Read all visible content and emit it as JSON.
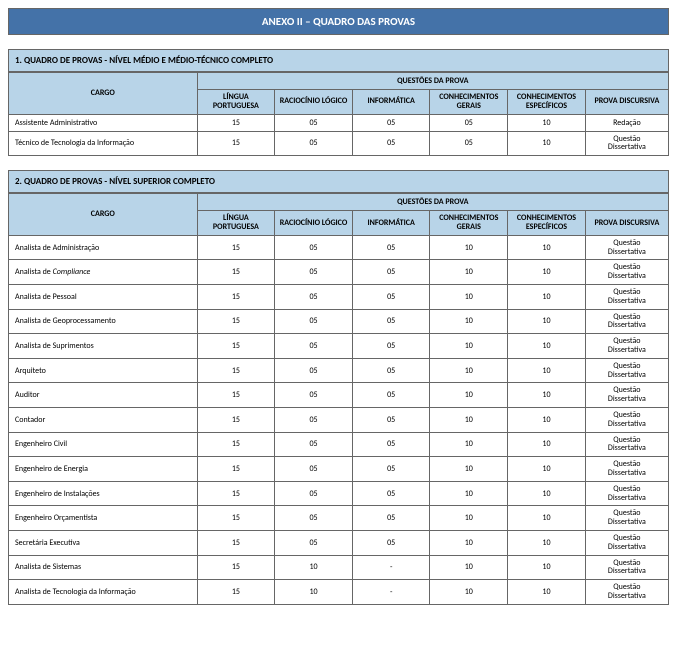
{
  "colors": {
    "title_bg": "#4472a8",
    "title_fg": "#ffffff",
    "section_bg": "#b8d4e8",
    "border": "#666666",
    "cell_bg": "#ffffff",
    "text": "#000000"
  },
  "title": "ANEXO II – QUADRO DAS PROVAS",
  "headers": {
    "cargo": "CARGO",
    "questoes": "QUESTÕES DA PROVA",
    "lingua": "LÍNGUA PORTUGUESA",
    "raciocinio": "RACIOCÍNIO LÓGICO",
    "informatica": "INFORMÁTICA",
    "gerais": "CONHECIMENTOS GERAIS",
    "especificos": "CONHECIMENTOS ESPECÍFICOS",
    "discursiva": "PROVA DISCURSIVA"
  },
  "sections": [
    {
      "title": "1. QUADRO DE PROVAS - NÍVEL MÉDIO E MÉDIO-TÉCNICO COMPLETO",
      "rows": [
        {
          "cargo": "Assistente Administrativo",
          "v": [
            "15",
            "05",
            "05",
            "05",
            "10",
            "Redação"
          ]
        },
        {
          "cargo": "Técnico de Tecnologia da Informação",
          "v": [
            "15",
            "05",
            "05",
            "05",
            "10",
            "Questão Dissertativa"
          ]
        }
      ]
    },
    {
      "title": "2. QUADRO DE PROVAS - NÍVEL SUPERIOR COMPLETO",
      "rows": [
        {
          "cargo": "Analista de Administração",
          "v": [
            "15",
            "05",
            "05",
            "10",
            "10",
            "Questão Dissertativa"
          ]
        },
        {
          "cargo": "Analista de Compliance",
          "v": [
            "15",
            "05",
            "05",
            "10",
            "10",
            "Questão Dissertativa"
          ],
          "italicPart": "Compliance"
        },
        {
          "cargo": "Analista de Pessoal",
          "v": [
            "15",
            "05",
            "05",
            "10",
            "10",
            "Questão Dissertativa"
          ]
        },
        {
          "cargo": "Analista de Geoprocessamento",
          "v": [
            "15",
            "05",
            "05",
            "10",
            "10",
            "Questão Dissertativa"
          ]
        },
        {
          "cargo": "Analista de Suprimentos",
          "v": [
            "15",
            "05",
            "05",
            "10",
            "10",
            "Questão Dissertativa"
          ]
        },
        {
          "cargo": "Arquiteto",
          "v": [
            "15",
            "05",
            "05",
            "10",
            "10",
            "Questão Dissertativa"
          ]
        },
        {
          "cargo": "Auditor",
          "v": [
            "15",
            "05",
            "05",
            "10",
            "10",
            "Questão Dissertativa"
          ]
        },
        {
          "cargo": "Contador",
          "v": [
            "15",
            "05",
            "05",
            "10",
            "10",
            "Questão Dissertativa"
          ]
        },
        {
          "cargo": "Engenheiro Civil",
          "v": [
            "15",
            "05",
            "05",
            "10",
            "10",
            "Questão Dissertativa"
          ]
        },
        {
          "cargo": "Engenheiro de Energia",
          "v": [
            "15",
            "05",
            "05",
            "10",
            "10",
            "Questão Dissertativa"
          ]
        },
        {
          "cargo": "Engenheiro de Instalações",
          "v": [
            "15",
            "05",
            "05",
            "10",
            "10",
            "Questão Dissertativa"
          ]
        },
        {
          "cargo": "Engenheiro Orçamentista",
          "v": [
            "15",
            "05",
            "05",
            "10",
            "10",
            "Questão Dissertativa"
          ]
        },
        {
          "cargo": "Secretária Executiva",
          "v": [
            "15",
            "05",
            "05",
            "10",
            "10",
            "Questão Dissertativa"
          ]
        },
        {
          "cargo": "Analista de Sistemas",
          "v": [
            "15",
            "10",
            "-",
            "10",
            "10",
            "Questão Dissertativa"
          ]
        },
        {
          "cargo": "Analista de Tecnologia da Informação",
          "v": [
            "15",
            "10",
            "-",
            "10",
            "10",
            "Questão Dissertativa"
          ]
        }
      ]
    }
  ]
}
